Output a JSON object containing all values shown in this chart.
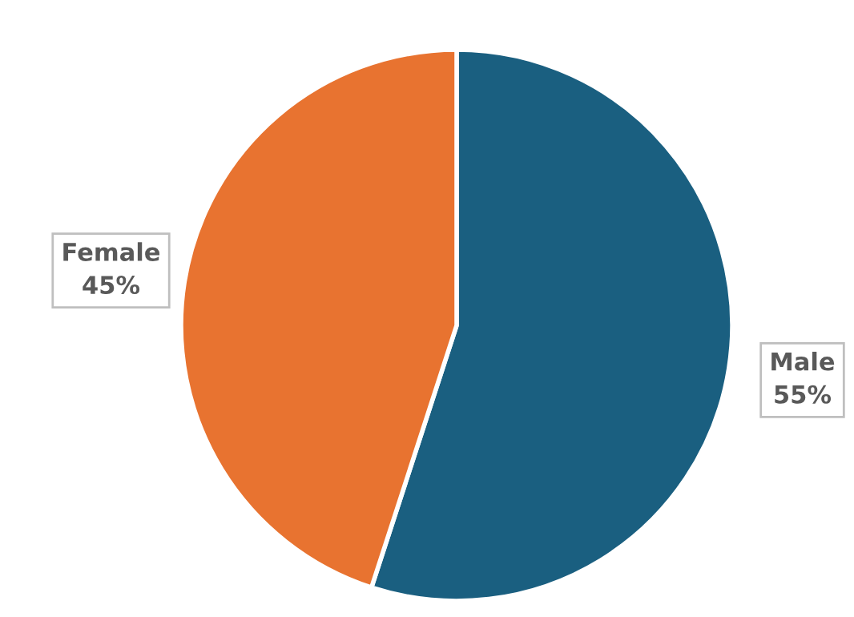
{
  "chart_data": {
    "type": "pie",
    "categories": [
      "Male",
      "Female"
    ],
    "values": [
      55,
      45
    ],
    "colors": [
      "#1a5f80",
      "#e87330"
    ],
    "value_labels": [
      "55%",
      "45%"
    ],
    "legend": false
  }
}
